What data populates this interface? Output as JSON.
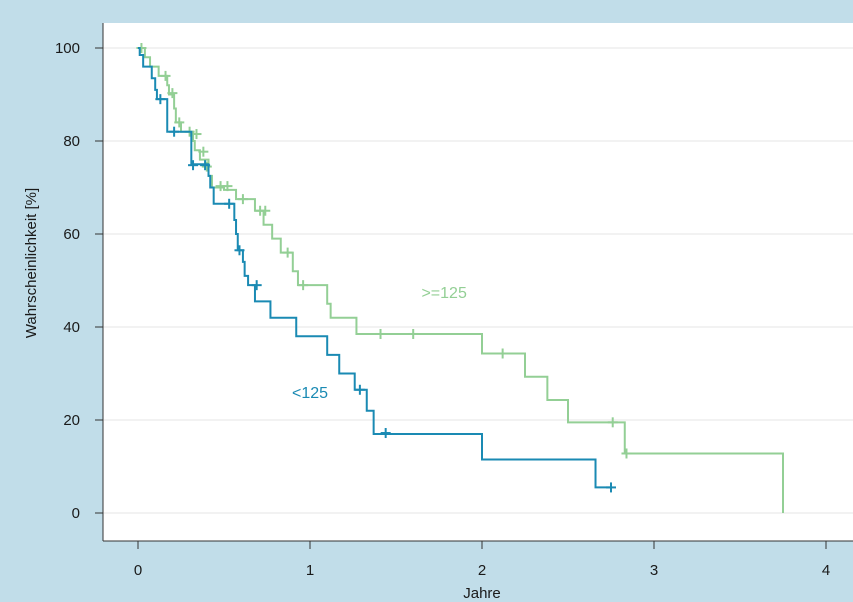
{
  "chart_data": {
    "type": "line",
    "xlabel": "Jahre",
    "ylabel": "Wahrscheinlichkeit [%]",
    "xlim": [
      -0.2,
      4.15
    ],
    "ylim": [
      -6.3,
      104.5
    ],
    "x_ticks": [
      0,
      1,
      2,
      3,
      4
    ],
    "y_ticks": [
      0,
      20,
      40,
      60,
      80,
      100
    ],
    "grid": "horizontal",
    "colors": {
      "background_band": "#c1dde9",
      "plot_background": "#ffffff",
      "grid": "#e6e6e6",
      "series_low": "#1a8ab3",
      "series_high": "#93cf95"
    },
    "series": [
      {
        "name": "<125",
        "color": "#1a8ab3",
        "step_points": [
          [
            0,
            100
          ],
          [
            0.01,
            98.5
          ],
          [
            0.03,
            96
          ],
          [
            0.08,
            93.5
          ],
          [
            0.1,
            91
          ],
          [
            0.11,
            89
          ],
          [
            0.17,
            85
          ],
          [
            0.17,
            82
          ],
          [
            0.31,
            79
          ],
          [
            0.31,
            75
          ],
          [
            0.41,
            72.5
          ],
          [
            0.42,
            70
          ],
          [
            0.44,
            66.5
          ],
          [
            0.56,
            63
          ],
          [
            0.57,
            60
          ],
          [
            0.58,
            56.5
          ],
          [
            0.61,
            54
          ],
          [
            0.62,
            51
          ],
          [
            0.64,
            49
          ],
          [
            0.68,
            45.5
          ],
          [
            0.77,
            42
          ],
          [
            0.92,
            38
          ],
          [
            1.1,
            34
          ],
          [
            1.17,
            30
          ],
          [
            1.26,
            26.5
          ],
          [
            1.33,
            22
          ],
          [
            1.37,
            17
          ],
          [
            2.0,
            11.5
          ],
          [
            2.66,
            5.5
          ],
          [
            2.75,
            5.5
          ]
        ],
        "censor_points": [
          [
            0.13,
            89
          ],
          [
            0.21,
            82
          ],
          [
            0.32,
            74.8
          ],
          [
            0.39,
            74.8
          ],
          [
            0.53,
            66.5
          ],
          [
            0.59,
            56.5
          ],
          [
            0.69,
            49
          ],
          [
            1.29,
            26.5
          ],
          [
            1.44,
            17.2
          ],
          [
            2.75,
            5.5
          ]
        ]
      },
      {
        "name": ">=125",
        "color": "#93cf95",
        "step_points": [
          [
            0,
            100
          ],
          [
            0.04,
            98
          ],
          [
            0.07,
            96
          ],
          [
            0.12,
            94
          ],
          [
            0.17,
            92
          ],
          [
            0.18,
            90
          ],
          [
            0.21,
            87
          ],
          [
            0.22,
            84
          ],
          [
            0.25,
            82
          ],
          [
            0.32,
            80
          ],
          [
            0.33,
            78
          ],
          [
            0.36,
            76
          ],
          [
            0.41,
            72.5
          ],
          [
            0.43,
            70
          ],
          [
            0.5,
            69.5
          ],
          [
            0.57,
            67.5
          ],
          [
            0.68,
            65
          ],
          [
            0.73,
            62
          ],
          [
            0.78,
            59
          ],
          [
            0.83,
            56
          ],
          [
            0.9,
            52
          ],
          [
            0.93,
            49
          ],
          [
            1.1,
            45
          ],
          [
            1.12,
            42
          ],
          [
            1.27,
            38.5
          ],
          [
            2.0,
            34.3
          ],
          [
            2.25,
            29.3
          ],
          [
            2.38,
            24.3
          ],
          [
            2.5,
            19.5
          ],
          [
            2.83,
            12.8
          ],
          [
            3.75,
            12.8
          ],
          [
            3.75,
            0
          ]
        ],
        "censor_points": [
          [
            0.02,
            100
          ],
          [
            0.16,
            94
          ],
          [
            0.2,
            90.3
          ],
          [
            0.24,
            84
          ],
          [
            0.3,
            82
          ],
          [
            0.34,
            81.5
          ],
          [
            0.38,
            77.7
          ],
          [
            0.4,
            74.5
          ],
          [
            0.48,
            70.3
          ],
          [
            0.52,
            70.3
          ],
          [
            0.61,
            67.5
          ],
          [
            0.71,
            65
          ],
          [
            0.74,
            65
          ],
          [
            0.87,
            56
          ],
          [
            0.96,
            49
          ],
          [
            1.41,
            38.5
          ],
          [
            1.6,
            38.5
          ],
          [
            2.12,
            34.3
          ],
          [
            2.76,
            19.5
          ],
          [
            2.84,
            12.8
          ]
        ]
      }
    ],
    "annotations": [
      {
        "text": ">=125",
        "x": 1.78,
        "y": 46.2,
        "series": 1
      },
      {
        "text": "<125",
        "x": 1.0,
        "y": 24.7,
        "series": 0
      }
    ]
  }
}
